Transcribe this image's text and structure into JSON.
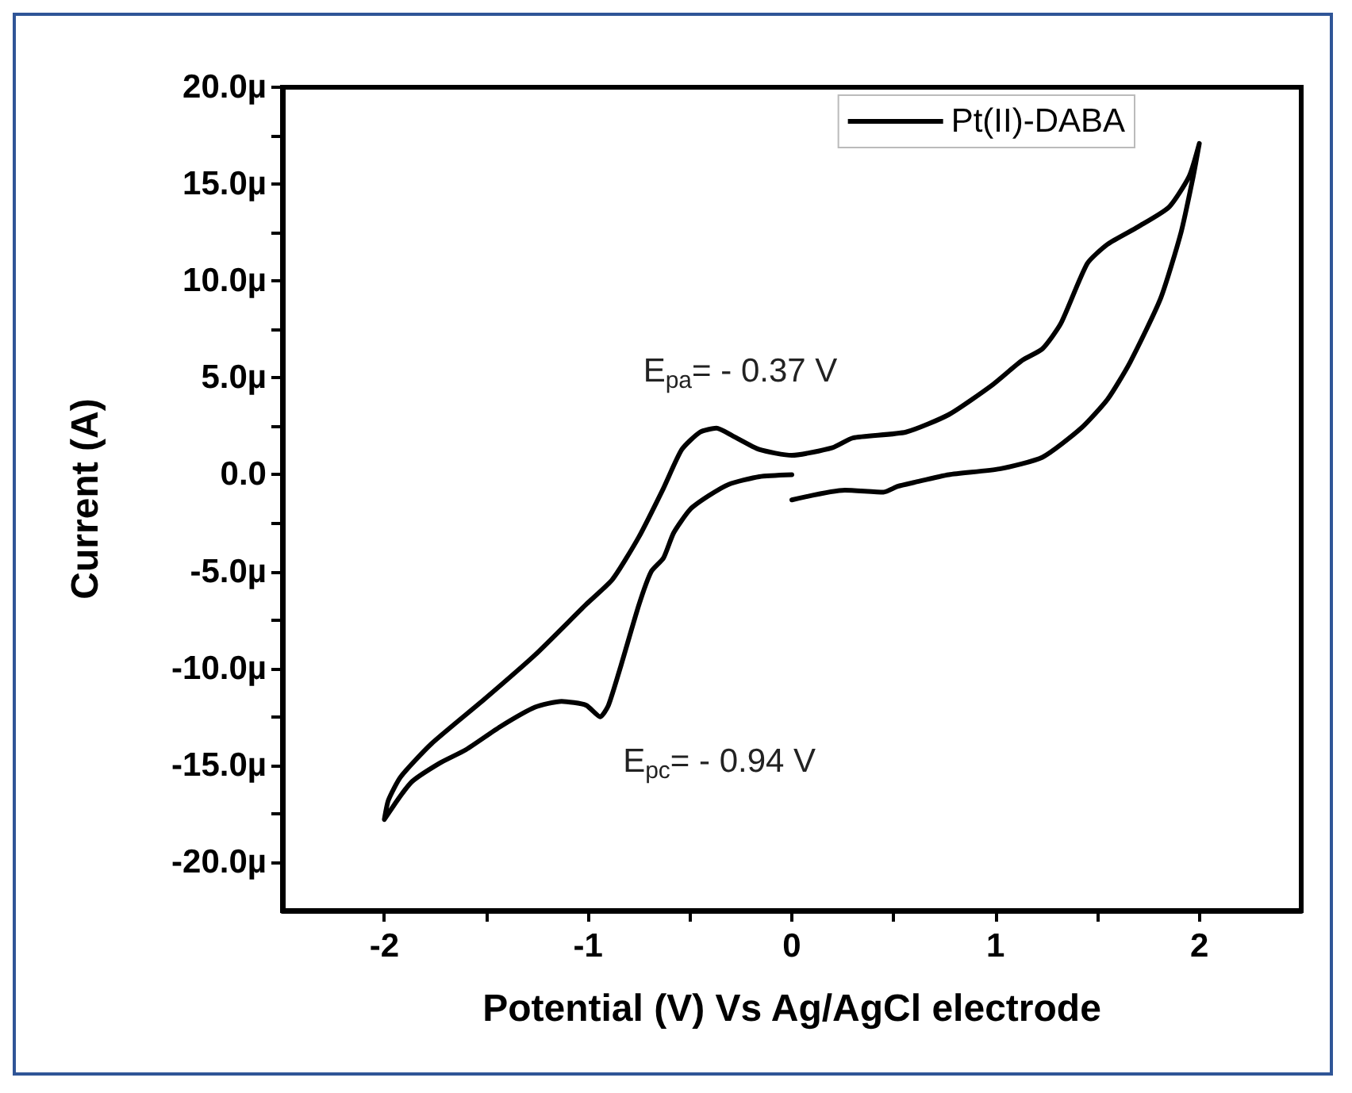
{
  "chart_data": {
    "type": "line",
    "xlabel": "Potential (V) Vs Ag/AgCl electrode",
    "ylabel": "Current (A)",
    "xlim": [
      -2.5,
      2.5
    ],
    "ylim": [
      -22.5,
      20
    ],
    "xticks": [
      {
        "value": -2,
        "label": "-2"
      },
      {
        "value": -1.5,
        "label": null
      },
      {
        "value": -1,
        "label": "-1"
      },
      {
        "value": -0.5,
        "label": null
      },
      {
        "value": 0,
        "label": "0"
      },
      {
        "value": 0.5,
        "label": null
      },
      {
        "value": 1,
        "label": "1"
      },
      {
        "value": 1.5,
        "label": null
      },
      {
        "value": 2,
        "label": "2"
      }
    ],
    "yticks": [
      {
        "value": 20,
        "label": "20.0µ"
      },
      {
        "value": 17.5,
        "label": null
      },
      {
        "value": 15,
        "label": "15.0µ"
      },
      {
        "value": 12.5,
        "label": null
      },
      {
        "value": 10,
        "label": "10.0µ"
      },
      {
        "value": 7.5,
        "label": null
      },
      {
        "value": 5,
        "label": "5.0µ"
      },
      {
        "value": 2.5,
        "label": null
      },
      {
        "value": 0,
        "label": "0.0"
      },
      {
        "value": -2.5,
        "label": null
      },
      {
        "value": -5,
        "label": "-5.0µ"
      },
      {
        "value": -7.5,
        "label": null
      },
      {
        "value": -10,
        "label": "-10.0µ"
      },
      {
        "value": -12.5,
        "label": null
      },
      {
        "value": -15,
        "label": "-15.0µ"
      },
      {
        "value": -17.5,
        "label": null
      },
      {
        "value": -20,
        "label": "-20.0µ"
      }
    ],
    "grid": false,
    "legend": "top right",
    "marker": "none",
    "line_style": "solid",
    "annotations": [
      {
        "text": "E$_{pa}$= - 0.37 V",
        "x": -0.37,
        "y": 2.4
      },
      {
        "text": "E$_{pc}$= - 0.94 V",
        "x": -0.94,
        "y": -12.5
      }
    ],
    "series": [
      {
        "name": "Pt(II)-DABA",
        "color": "#000000",
        "x": [
          0,
          -0.16,
          -0.31,
          -0.41,
          -0.5,
          -0.58,
          -0.63,
          -0.69,
          -0.75,
          -0.84,
          -0.9,
          -0.94,
          -1.01,
          -1.13,
          -1.26,
          -1.43,
          -1.6,
          -1.73,
          -1.87,
          -2.0,
          -1.98,
          -1.92,
          -1.77,
          -1.51,
          -1.26,
          -1.01,
          -0.88,
          -0.75,
          -0.63,
          -0.54,
          -0.45,
          -0.37,
          -0.29,
          -0.16,
          0,
          0.2,
          0.3,
          0.56,
          0.77,
          0.98,
          1.13,
          1.23,
          1.32,
          1.45,
          1.55,
          1.7,
          1.85,
          1.95,
          2.0,
          1.97,
          1.91,
          1.81,
          1.66,
          1.55,
          1.42,
          1.23,
          1.02,
          0.77,
          0.6,
          0.52,
          0.45,
          0.26,
          0
        ],
        "values": [
          0,
          -0.1,
          -0.5,
          -1.1,
          -1.8,
          -3.0,
          -4.3,
          -5.0,
          -6.7,
          -9.9,
          -11.9,
          -12.5,
          -11.9,
          -11.7,
          -12.0,
          -13.0,
          -14.2,
          -14.9,
          -15.9,
          -17.8,
          -16.8,
          -15.6,
          -13.9,
          -11.6,
          -9.3,
          -6.7,
          -5.4,
          -3.2,
          -0.7,
          1.3,
          2.2,
          2.4,
          2.0,
          1.3,
          1.0,
          1.4,
          1.9,
          2.2,
          3.1,
          4.6,
          5.9,
          6.5,
          7.8,
          10.9,
          11.9,
          12.8,
          13.8,
          15.4,
          17.1,
          15.4,
          12.5,
          9.1,
          5.8,
          3.9,
          2.4,
          0.9,
          0.3,
          0.0,
          -0.4,
          -0.6,
          -0.9,
          -0.8,
          -1.3
        ]
      }
    ]
  }
}
